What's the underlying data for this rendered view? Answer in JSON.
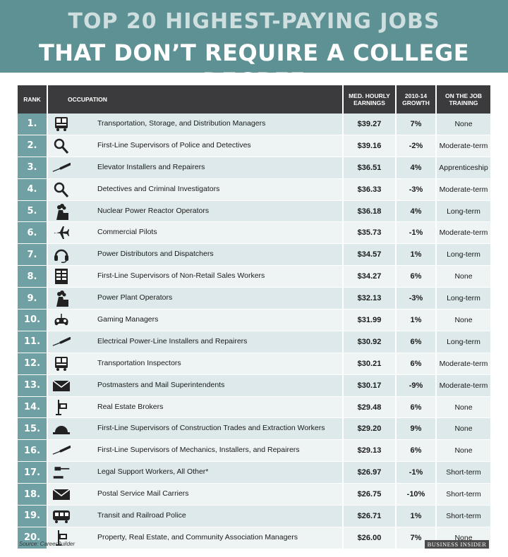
{
  "header": {
    "title_line1": "TOP 20 HIGHEST-PAYING JOBS",
    "title_line2": "THAT DON’T REQUIRE A COLLEGE DEGREE",
    "background_color": "#5e9194"
  },
  "table": {
    "columns": {
      "rank": "RANK",
      "occupation": "OCCUPATION",
      "earnings_line1": "MED. HOURLY",
      "earnings_line2": "EARNINGS",
      "growth_line1": "2010-14",
      "growth_line2": "GROWTH",
      "training_line1": "ON THE JOB",
      "training_line2": "TRAINING"
    },
    "rows": [
      {
        "rank": "1.",
        "icon": "bus-icon",
        "occupation": "Transportation, Storage, and Distribution Managers",
        "earnings": "$39.27",
        "growth": "7%",
        "training": "None"
      },
      {
        "rank": "2.",
        "icon": "magnifying-glass-icon",
        "occupation": "First-Line Supervisors of Police and Detectives",
        "earnings": "$39.16",
        "growth": "-2%",
        "training": "Moderate-term"
      },
      {
        "rank": "3.",
        "icon": "screwdriver-icon",
        "occupation": "Elevator Installers and Repairers",
        "earnings": "$36.51",
        "growth": "4%",
        "training": "Apprenticeship"
      },
      {
        "rank": "4.",
        "icon": "magnifying-glass-icon",
        "occupation": "Detectives and Criminal Investigators",
        "earnings": "$36.33",
        "growth": "-3%",
        "training": "Moderate-term"
      },
      {
        "rank": "5.",
        "icon": "power-plant-icon",
        "occupation": "Nuclear Power Reactor Operators",
        "earnings": "$36.18",
        "growth": "4%",
        "training": "Long-term"
      },
      {
        "rank": "6.",
        "icon": "airplane-icon",
        "occupation": "Commercial Pilots",
        "earnings": "$35.73",
        "growth": "-1%",
        "training": "Moderate-term"
      },
      {
        "rank": "7.",
        "icon": "headset-icon",
        "occupation": "Power Distributors and Dispatchers",
        "earnings": "$34.57",
        "growth": "1%",
        "training": "Long-term"
      },
      {
        "rank": "8.",
        "icon": "spreadsheet-icon",
        "occupation": "First-Line Supervisors of Non-Retail Sales Workers",
        "earnings": "$34.27",
        "growth": "6%",
        "training": "None"
      },
      {
        "rank": "9.",
        "icon": "power-plant-icon",
        "occupation": "Power Plant Operators",
        "earnings": "$32.13",
        "growth": "-3%",
        "training": "Long-term"
      },
      {
        "rank": "10.",
        "icon": "game-controller-icon",
        "occupation": "Gaming Managers",
        "earnings": "$31.99",
        "growth": "1%",
        "training": "None"
      },
      {
        "rank": "11.",
        "icon": "screwdriver-icon",
        "occupation": "Electrical Power-Line Installers and Repairers",
        "earnings": "$30.92",
        "growth": "6%",
        "training": "Long-term"
      },
      {
        "rank": "12.",
        "icon": "bus-icon",
        "occupation": "Transportation Inspectors",
        "earnings": "$30.21",
        "growth": "6%",
        "training": "Moderate-term"
      },
      {
        "rank": "13.",
        "icon": "envelope-icon",
        "occupation": "Postmasters and Mail Superintendents",
        "earnings": "$30.17",
        "growth": "-9%",
        "training": "Moderate-term"
      },
      {
        "rank": "14.",
        "icon": "sign-post-icon",
        "occupation": "Real Estate Brokers",
        "earnings": "$29.48",
        "growth": "6%",
        "training": "None"
      },
      {
        "rank": "15.",
        "icon": "hard-hat-icon",
        "occupation": "First-Line Supervisors of Construction Trades and Extraction Workers",
        "earnings": "$29.20",
        "growth": "9%",
        "training": "None"
      },
      {
        "rank": "16.",
        "icon": "screwdriver-icon",
        "occupation": "First-Line Supervisors of Mechanics, Installers, and Repairers",
        "earnings": "$29.13",
        "growth": "6%",
        "training": "None"
      },
      {
        "rank": "17.",
        "icon": "gavel-icon",
        "occupation": "Legal Support Workers, All Other*",
        "earnings": "$26.97",
        "growth": "-1%",
        "training": "Short-term"
      },
      {
        "rank": "18.",
        "icon": "envelope-icon",
        "occupation": "Postal Service Mail Carriers",
        "earnings": "$26.75",
        "growth": "-10%",
        "training": "Short-term"
      },
      {
        "rank": "19.",
        "icon": "train-icon",
        "occupation": "Transit and Railroad Police",
        "earnings": "$26.71",
        "growth": "1%",
        "training": "Short-term"
      },
      {
        "rank": "20.",
        "icon": "sign-post-icon",
        "occupation": "Property, Real Estate, and Community Association Managers",
        "earnings": "$26.00",
        "growth": "7%",
        "training": "None"
      }
    ]
  },
  "footer": {
    "source": "Source: CareerBuilder",
    "brand": "BUSINESS INSIDER"
  },
  "colors": {
    "rank_cell": "#6fa0a3",
    "header_row": "#3b3b3d",
    "row_odd": "#dde9ea",
    "row_even": "#eef3f3"
  }
}
